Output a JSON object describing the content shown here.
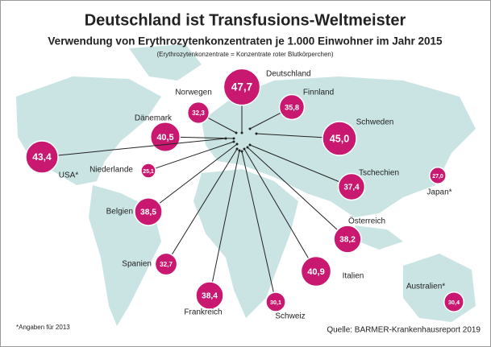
{
  "chart_data": {
    "type": "bubble-map",
    "title": "Deutschland ist Transfusions-Weltmeister",
    "subtitle": "Verwendung von Erythrozytenkonzentraten je 1.000 Einwohner im Jahr 2015",
    "note": "(Erythrozytenkonzentrate = Konzentrate roter Blutkörperchen)",
    "categories": [
      "Deutschland",
      "Norwegen",
      "Finnland",
      "Dänemark",
      "Schweden",
      "USA*",
      "Niederlande",
      "Tschechien",
      "Japan*",
      "Belgien",
      "Österreich",
      "Spanien",
      "Italien",
      "Australien*",
      "Frankreich",
      "Schweiz"
    ],
    "values": [
      47.7,
      32.3,
      35.8,
      40.5,
      45.0,
      43.4,
      25.1,
      37.4,
      27.0,
      38.5,
      38.2,
      32.7,
      40.9,
      30.4,
      38.4,
      30.1
    ],
    "value_labels": [
      "47,7",
      "32,3",
      "35,8",
      "40,5",
      "45,0",
      "43,4",
      "25,1",
      "37,4",
      "27,0",
      "38,5",
      "38,2",
      "32,7",
      "40,9",
      "30,4",
      "38,4",
      "30,1"
    ],
    "color": "#c8186f",
    "footnote": "*Angaben für 2013",
    "source": "Quelle: BARMER-Krankenhausreport 2019"
  }
}
